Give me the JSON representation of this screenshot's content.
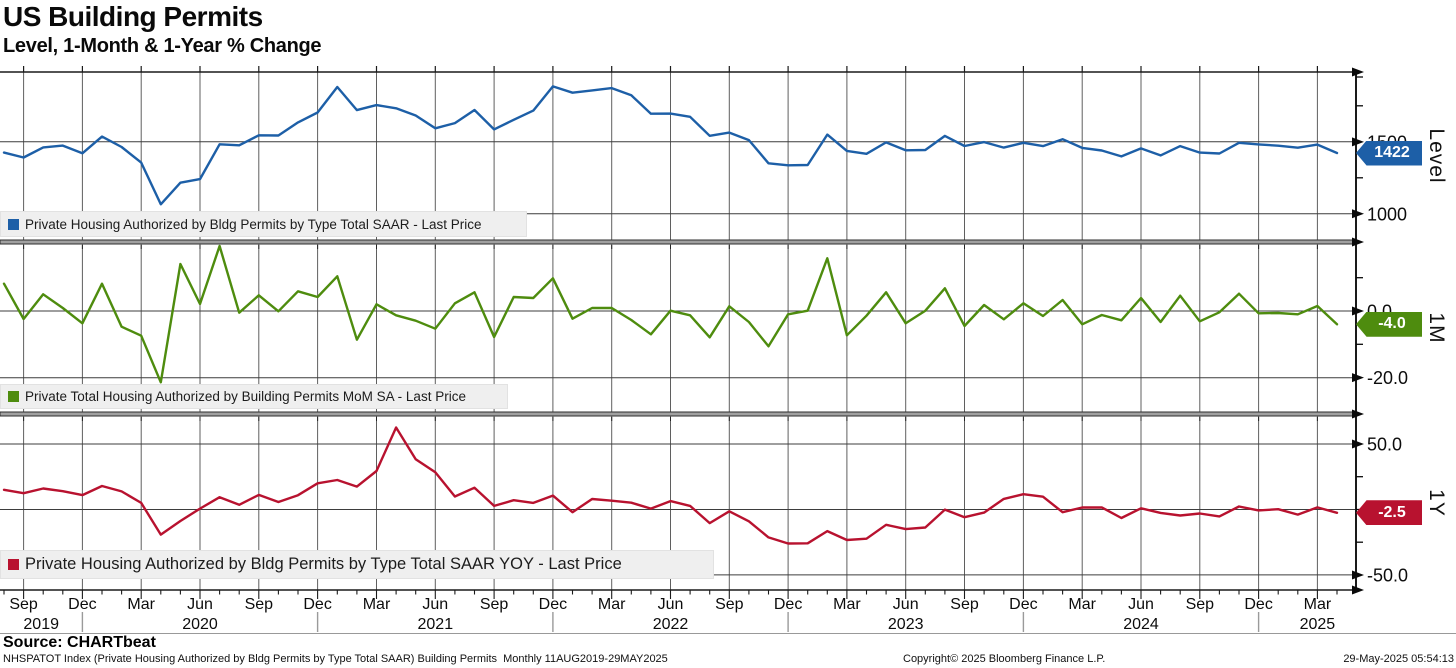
{
  "header": {
    "title": "US Building Permits",
    "subtitle": "Level, 1-Month & 1-Year % Change"
  },
  "x_axis": {
    "months": [
      "Aug-19",
      "Sep-19",
      "Oct-19",
      "Nov-19",
      "Dec-19",
      "Jan-20",
      "Feb-20",
      "Mar-20",
      "Apr-20",
      "May-20",
      "Jun-20",
      "Jul-20",
      "Aug-20",
      "Sep-20",
      "Oct-20",
      "Nov-20",
      "Dec-20",
      "Jan-21",
      "Feb-21",
      "Mar-21",
      "Apr-21",
      "May-21",
      "Jun-21",
      "Jul-21",
      "Aug-21",
      "Sep-21",
      "Oct-21",
      "Nov-21",
      "Dec-21",
      "Jan-22",
      "Feb-22",
      "Mar-22",
      "Apr-22",
      "May-22",
      "Jun-22",
      "Jul-22",
      "Aug-22",
      "Sep-22",
      "Oct-22",
      "Nov-22",
      "Dec-22",
      "Jan-23",
      "Feb-23",
      "Mar-23",
      "Apr-23",
      "May-23",
      "Jun-23",
      "Jul-23",
      "Aug-23",
      "Sep-23",
      "Oct-23",
      "Nov-23",
      "Dec-23",
      "Jan-24",
      "Feb-24",
      "Mar-24",
      "Apr-24",
      "May-24",
      "Jun-24",
      "Jul-24",
      "Aug-24",
      "Sep-24",
      "Oct-24",
      "Nov-24",
      "Dec-24",
      "Jan-25",
      "Feb-25",
      "Mar-25",
      "Apr-25"
    ],
    "quarter_months": [
      "Mar",
      "Jun",
      "Sep",
      "Dec"
    ],
    "years": [
      {
        "label": "2019",
        "m": 1.9
      },
      {
        "label": "2020",
        "m": 10
      },
      {
        "label": "2021",
        "m": 22
      },
      {
        "label": "2022",
        "m": 34
      },
      {
        "label": "2023",
        "m": 46
      },
      {
        "label": "2024",
        "m": 58
      },
      {
        "label": "2025",
        "m": 67
      }
    ],
    "year_separators_m": [
      4,
      16,
      28,
      40,
      52,
      64
    ]
  },
  "chart_data": [
    {
      "type": "line",
      "panel": "level",
      "legend": "Private Housing Authorized by Bldg Permits by Type Total SAAR - Last Price",
      "color": "#1d5fa7",
      "axis_title": "Level",
      "last_value_label": "1422",
      "ylim": [
        818,
        1985
      ],
      "labeled_ticks": [
        {
          "v": 1500,
          "label": "1500"
        },
        {
          "v": 1000,
          "label": "1000"
        }
      ],
      "minor_ticks": [
        1250,
        1750,
        1950
      ],
      "gridlines": [
        1500,
        1000
      ],
      "values": [
        1425,
        1391,
        1461,
        1474,
        1420,
        1536,
        1464,
        1356,
        1066,
        1216,
        1241,
        1483,
        1476,
        1545,
        1544,
        1635,
        1704,
        1881,
        1720,
        1755,
        1733,
        1683,
        1594,
        1630,
        1721,
        1586,
        1653,
        1717,
        1885,
        1841,
        1857,
        1873,
        1823,
        1695,
        1696,
        1674,
        1542,
        1564,
        1512,
        1351,
        1337,
        1339,
        1550,
        1437,
        1417,
        1496,
        1441,
        1443,
        1541,
        1471,
        1498,
        1460,
        1493,
        1470,
        1518,
        1458,
        1440,
        1399,
        1454,
        1406,
        1470,
        1425,
        1419,
        1493,
        1482,
        1473,
        1459,
        1481,
        1422
      ]
    },
    {
      "type": "line",
      "panel": "mom",
      "legend": "Private Total Housing Authorized by Building Permits MoM SA - Last Price",
      "color": "#4e8c0e",
      "axis_title": "1M",
      "last_value_label": "-4.0",
      "ylim": [
        -30.3,
        20.1
      ],
      "labeled_ticks": [
        {
          "v": 0,
          "label": "0.0"
        },
        {
          "v": -20,
          "label": "-20.0"
        }
      ],
      "minor_ticks": [
        10,
        -10
      ],
      "gridlines": [
        0,
        -20
      ],
      "values": [
        8.2,
        -2.4,
        5.0,
        0.9,
        -3.7,
        8.2,
        -4.7,
        -7.4,
        -21.4,
        14.1,
        2.1,
        19.5,
        -0.5,
        4.7,
        -0.1,
        5.9,
        4.2,
        10.4,
        -8.6,
        2.0,
        -1.3,
        -2.9,
        -5.3,
        2.3,
        5.6,
        -7.8,
        4.2,
        3.9,
        9.8,
        -2.3,
        0.9,
        0.9,
        -2.7,
        -7.0,
        0.1,
        -1.3,
        -7.9,
        1.4,
        -3.3,
        -10.6,
        -1.0,
        0.1,
        15.8,
        -7.3,
        -1.4,
        5.6,
        -3.7,
        0.1,
        6.8,
        -4.5,
        1.8,
        -2.5,
        2.3,
        -1.5,
        3.3,
        -4.0,
        -1.2,
        -2.8,
        3.9,
        -3.3,
        4.6,
        -3.1,
        -0.4,
        5.2,
        -0.7,
        -0.6,
        -1.0,
        1.5,
        -4.0
      ]
    },
    {
      "type": "line",
      "panel": "yoy",
      "legend": "Private Housing Authorized by Bldg Permits by Type Total SAAR YOY - Last Price",
      "color": "#b8122f",
      "axis_title": "1Y",
      "last_value_label": "-2.5",
      "ylim": [
        -61.5,
        71.4
      ],
      "labeled_ticks": [
        {
          "v": 50,
          "label": "50.0"
        },
        {
          "v": -50,
          "label": "-50.0"
        }
      ],
      "minor_ticks": [
        25,
        0,
        -25
      ],
      "gridlines": [
        50,
        0,
        -50
      ],
      "values": [
        15.0,
        12.4,
        16.0,
        14.0,
        11.0,
        17.9,
        13.8,
        5.0,
        -19.2,
        -8.8,
        0.7,
        9.4,
        3.6,
        11.1,
        5.7,
        10.9,
        20.0,
        22.5,
        17.5,
        29.4,
        62.6,
        38.4,
        28.4,
        9.9,
        16.6,
        2.7,
        7.1,
        5.0,
        10.6,
        -2.1,
        8.0,
        6.7,
        5.2,
        0.7,
        6.4,
        2.7,
        -10.4,
        -1.4,
        -9.0,
        -21.3,
        -26.0,
        -25.8,
        -16.5,
        -23.3,
        -22.3,
        -11.7,
        -15.0,
        -13.8,
        -0.1,
        -5.9,
        -2.4,
        8.1,
        11.7,
        9.8,
        -2.1,
        1.5,
        1.6,
        -6.5,
        0.9,
        -2.6,
        -4.6,
        -3.1,
        -5.3,
        2.3,
        -0.7,
        0.2,
        -3.9,
        1.6,
        -2.5
      ]
    }
  ],
  "footer": {
    "source": "Source: CHARTbeat",
    "description": "NHSPATOT Index (Private Housing Authorized by Bldg Permits by Type Total SAAR) Building Permits  Monthly 11AUG2019-29MAY2025",
    "copyright": "Copyright© 2025 Bloomberg Finance L.P.",
    "timestamp": "29-May-2025 05:54:13"
  }
}
